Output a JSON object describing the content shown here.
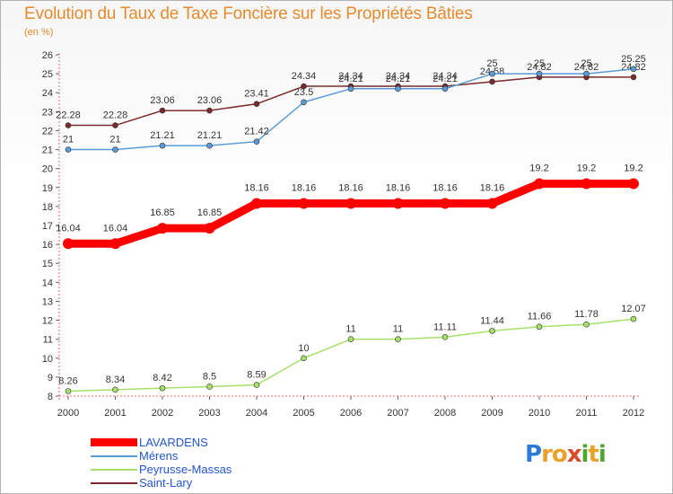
{
  "title": "Evolution du Taux de Taxe Foncière sur les Propriétés Bâties",
  "subtitle": "(en %)",
  "logo": {
    "text": "Proxiti",
    "letters": [
      {
        "ch": "P",
        "color": "#2b7bd6"
      },
      {
        "ch": "r",
        "color": "#e8a12a"
      },
      {
        "ch": "o",
        "color": "#e8a12a"
      },
      {
        "ch": "x",
        "color": "#d84a2a"
      },
      {
        "ch": "i",
        "color": "#4aa82e"
      },
      {
        "ch": "t",
        "color": "#e8a12a"
      },
      {
        "ch": "i",
        "color": "#4aa82e"
      }
    ]
  },
  "chart_data": {
    "type": "line",
    "x": [
      2000,
      2001,
      2002,
      2003,
      2004,
      2005,
      2006,
      2007,
      2008,
      2009,
      2010,
      2011,
      2012
    ],
    "ylim": [
      8,
      26
    ],
    "yticks": [
      8,
      9,
      10,
      11,
      12,
      13,
      14,
      15,
      16,
      17,
      18,
      19,
      20,
      21,
      22,
      23,
      24,
      25,
      26
    ],
    "grid": false,
    "legend_position": "bottom-left",
    "series": [
      {
        "name": "Saint-Lary",
        "color": "#7a2a2a",
        "width": 1.5,
        "marker": 3,
        "values": [
          22.28,
          22.28,
          23.06,
          23.06,
          23.41,
          24.34,
          24.34,
          24.34,
          24.34,
          24.58,
          24.82,
          24.82,
          24.82
        ],
        "labels": [
          "22.28",
          "22.28",
          "23.06",
          "23.06",
          "23.41",
          "24.34",
          "24.34",
          "24.34",
          "24.34",
          "24.58",
          "24.82",
          "24.82",
          "24.82"
        ]
      },
      {
        "name": "Mérens",
        "color": "#5b9bd5",
        "width": 1.5,
        "marker": 3,
        "values": [
          21,
          21,
          21.21,
          21.21,
          21.42,
          23.5,
          24.21,
          24.21,
          24.21,
          25,
          25,
          25,
          25.25
        ],
        "labels": [
          "21",
          "21",
          "21.21",
          "21.21",
          "21.42",
          "23.5",
          "24.21",
          "24.21",
          "24.21",
          "25",
          "25",
          "25",
          "25.25"
        ]
      },
      {
        "name": "LAVARDENS",
        "color": "#ff0000",
        "width": 9,
        "marker": 6,
        "values": [
          16.04,
          16.04,
          16.85,
          16.85,
          18.16,
          18.16,
          18.16,
          18.16,
          18.16,
          18.16,
          19.2,
          19.2,
          19.2
        ],
        "labels": [
          "16.04",
          "16.04",
          "16.85",
          "16.85",
          "18.16",
          "18.16",
          "18.16",
          "18.16",
          "18.16",
          "18.16",
          "19.2",
          "19.2",
          "19.2"
        ]
      },
      {
        "name": "Peyrusse-Massas",
        "color": "#a6e06a",
        "width": 1.5,
        "marker": 3,
        "values": [
          8.26,
          8.34,
          8.42,
          8.5,
          8.59,
          10,
          11,
          11,
          11.11,
          11.44,
          11.66,
          11.78,
          12.07
        ],
        "labels": [
          "8.26",
          "8.34",
          "8.42",
          "8.5",
          "8.59",
          "10",
          "11",
          "11",
          "11.11",
          "11.44",
          "11.66",
          "11.78",
          "12.07"
        ]
      }
    ],
    "legend_order": [
      "LAVARDENS",
      "Mérens",
      "Peyrusse-Massas",
      "Saint-Lary"
    ]
  }
}
